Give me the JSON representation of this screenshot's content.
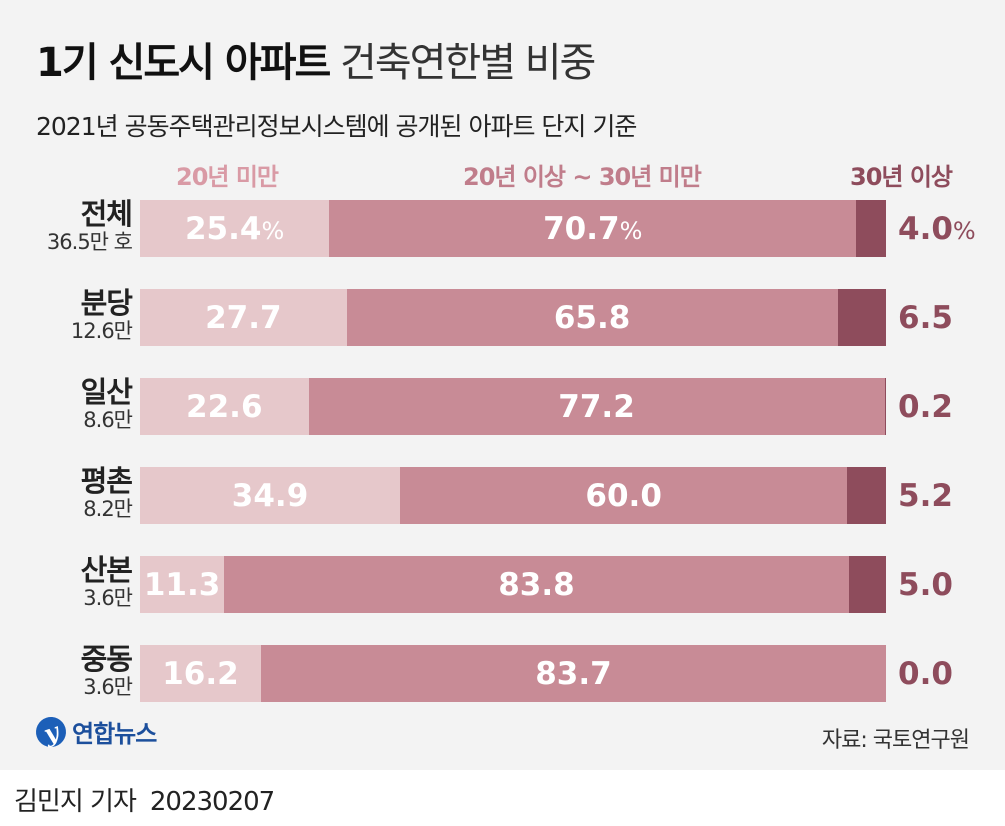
{
  "title_bold": "1기 신도시 아파트",
  "title_light": "건축연한별 비중",
  "subtitle": "2021년 공동주택관리정보시스템에 공개된 아파트 단지 기준",
  "source": "자료: 국토연구원",
  "logo_text": "연합뉴스",
  "byline": {
    "reporter": "김민지 기자",
    "date": "20230207"
  },
  "colors": {
    "under20": "#e6c8cb",
    "from20to30": "#c88b96",
    "over30": "#8e4c5c",
    "legend_under20": "#d99aa5",
    "legend_from20to30": "#c07d8b",
    "legend_over30": "#8e4c5c"
  },
  "chart_data": {
    "type": "bar",
    "stacked": true,
    "orientation": "horizontal",
    "unit": "%",
    "series": [
      {
        "name": "20년 미만",
        "values": [
          25.4,
          27.7,
          22.6,
          34.9,
          11.3,
          16.2
        ],
        "labels": [
          "25.4",
          "27.7",
          "22.6",
          "34.9",
          "11.3",
          "16.2"
        ]
      },
      {
        "name": "20년 이상 ~ 30년 미만",
        "values": [
          70.7,
          65.8,
          77.2,
          60.0,
          83.8,
          83.7
        ],
        "labels": [
          "70.7",
          "65.8",
          "77.2",
          "60.0",
          "83.8",
          "83.7"
        ]
      },
      {
        "name": "30년 이상",
        "values": [
          4.0,
          6.5,
          0.2,
          5.2,
          5.0,
          0.0
        ],
        "labels": [
          "4.0",
          "6.5",
          "0.2",
          "5.2",
          "5.0",
          "0.0"
        ]
      }
    ],
    "categories": [
      "전체",
      "분당",
      "일산",
      "평촌",
      "산본",
      "중동"
    ],
    "category_counts": [
      "36.5만 호",
      "12.6만",
      "8.6만",
      "8.2만",
      "3.6만",
      "3.6만"
    ],
    "percent_suffix_on_first_row": "%"
  }
}
